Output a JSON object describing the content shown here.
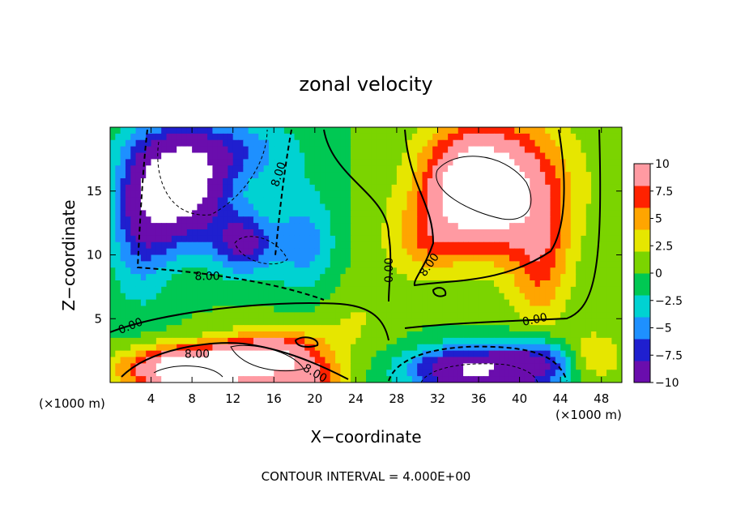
{
  "chart_data": {
    "type": "heatmap",
    "title": "zonal velocity",
    "xlabel": "X−coordinate",
    "ylabel": "Z−coordinate",
    "x_unit_left": "(×1000 m)",
    "x_unit_right": "(×1000 m)",
    "footer": "CONTOUR INTERVAL = 4.000E+00",
    "xlim": [
      0,
      50
    ],
    "ylim": [
      0,
      20
    ],
    "x_ticks": [
      4,
      8,
      12,
      16,
      20,
      24,
      28,
      32,
      36,
      40,
      44,
      48
    ],
    "x_tick_labels": [
      "4",
      "8",
      "12",
      "16",
      "20",
      "24",
      "28",
      "32",
      "36",
      "40",
      "44",
      "48"
    ],
    "y_ticks": [
      5,
      10,
      15
    ],
    "y_tick_labels": [
      "5",
      "10",
      "15"
    ],
    "colorbar": {
      "min": -10,
      "max": 10,
      "ticks": [
        10,
        7.5,
        5,
        2.5,
        0,
        -2.5,
        -5,
        -7.5,
        -10
      ],
      "tick_labels": [
        "10",
        "7.5",
        "5",
        "2.5",
        "0",
        "−2.5",
        "−5",
        "−7.5",
        "−10"
      ],
      "colors": [
        "#6a0dad",
        "#1f1fcf",
        "#1e90ff",
        "#00d2d2",
        "#00c853",
        "#7bd400",
        "#e6e600",
        "#ffa500",
        "#ff2200",
        "#ff9aa2"
      ]
    },
    "contour_labels": [
      {
        "text": "8.00",
        "x": 9.5,
        "y": 8.3,
        "rot": 0
      },
      {
        "text": "0.00",
        "x": 2.0,
        "y": 4.4,
        "rot": -22
      },
      {
        "text": "8.00",
        "x": 8.5,
        "y": 2.2,
        "rot": 0
      },
      {
        "text": "8.00",
        "x": 20.0,
        "y": 0.7,
        "rot": 30
      },
      {
        "text": "8.00",
        "x": 16.5,
        "y": 16.3,
        "rot": -72
      },
      {
        "text": "0.00",
        "x": 27.3,
        "y": 8.8,
        "rot": -90
      },
      {
        "text": "8.00",
        "x": 31.2,
        "y": 9.2,
        "rot": -55
      },
      {
        "text": "0.00",
        "x": 41.5,
        "y": 4.9,
        "rot": -12
      }
    ],
    "field_blobs": [
      {
        "x": 7,
        "y": 15,
        "sx": 4,
        "sy": 4,
        "a": -14
      },
      {
        "x": 13,
        "y": 11,
        "sx": 3,
        "sy": 2.5,
        "a": -9
      },
      {
        "x": 3,
        "y": 13,
        "sx": 3,
        "sy": 6,
        "a": -7
      },
      {
        "x": 11,
        "y": 18,
        "sx": 7,
        "sy": 3,
        "a": -6
      },
      {
        "x": 19,
        "y": 11,
        "sx": 3,
        "sy": 4,
        "a": -5
      },
      {
        "x": 8,
        "y": 1,
        "sx": 6,
        "sy": 1.7,
        "a": 18
      },
      {
        "x": 16,
        "y": 2,
        "sx": 5,
        "sy": 2,
        "a": 12
      },
      {
        "x": 20,
        "y": 0,
        "sx": 3,
        "sy": 1.5,
        "a": 6
      },
      {
        "x": 36,
        "y": 15,
        "sx": 4.5,
        "sy": 4,
        "a": 15
      },
      {
        "x": 38,
        "y": 16,
        "sx": 8,
        "sy": 6,
        "a": 6
      },
      {
        "x": 42,
        "y": 10,
        "sx": 3,
        "sy": 6,
        "a": 6
      },
      {
        "x": 31,
        "y": 11,
        "sx": 3,
        "sy": 3,
        "a": 4
      },
      {
        "x": 35,
        "y": 1,
        "sx": 6,
        "sy": 1.8,
        "a": -12
      },
      {
        "x": 42,
        "y": 1.5,
        "sx": 4,
        "sy": 2,
        "a": -8
      },
      {
        "x": 24,
        "y": 5,
        "sx": 4,
        "sy": 3,
        "a": 2
      },
      {
        "x": 27,
        "y": 11,
        "sx": 3,
        "sy": 4,
        "a": 1
      },
      {
        "x": 47,
        "y": 2,
        "sx": 3,
        "sy": 2,
        "a": 5
      }
    ]
  }
}
